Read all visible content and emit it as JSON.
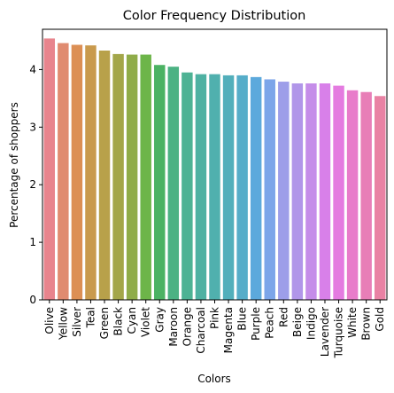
{
  "chart_data": {
    "type": "bar",
    "title": "Color Frequency Distribution",
    "xlabel": "Colors",
    "ylabel": "Percentage of shoppers",
    "ylim": [
      0,
      4.7
    ],
    "yticks": [
      0,
      1,
      2,
      3,
      4
    ],
    "grid": false,
    "legend": "none",
    "categories": [
      "Olive",
      "Yellow",
      "Silver",
      "Teal",
      "Green",
      "Black",
      "Cyan",
      "Violet",
      "Gray",
      "Maroon",
      "Orange",
      "Charcoal",
      "Pink",
      "Magenta",
      "Blue",
      "Purple",
      "Peach",
      "Red",
      "Beige",
      "Indigo",
      "Lavender",
      "Turquoise",
      "White",
      "Brown",
      "Gold"
    ],
    "values": [
      4.54,
      4.46,
      4.43,
      4.42,
      4.33,
      4.27,
      4.26,
      4.26,
      4.08,
      4.05,
      3.95,
      3.92,
      3.92,
      3.9,
      3.9,
      3.87,
      3.83,
      3.79,
      3.76,
      3.76,
      3.76,
      3.72,
      3.64,
      3.61,
      3.54
    ],
    "colors": [
      "#e8848d",
      "#e08b70",
      "#dc8f54",
      "#c99a4d",
      "#b8a14a",
      "#a3a649",
      "#8fac49",
      "#6db549",
      "#4bb263",
      "#4cb283",
      "#4db294",
      "#4eb1a2",
      "#50b0ae",
      "#52afbb",
      "#56adc9",
      "#5ca9dc",
      "#7ca5e9",
      "#9d9ee9",
      "#b196e9",
      "#c58de9",
      "#d880e9",
      "#e47be0",
      "#e87cca",
      "#e87eb7",
      "#e982a4"
    ]
  }
}
